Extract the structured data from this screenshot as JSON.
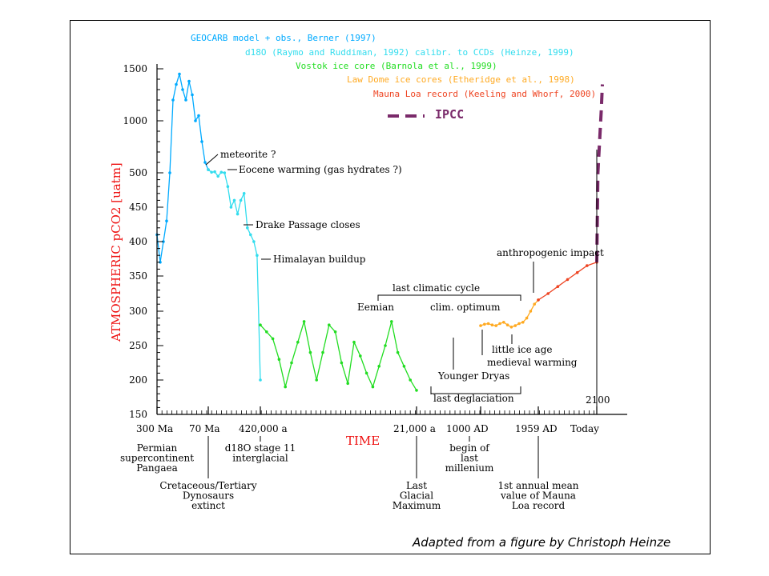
{
  "chart_data": {
    "type": "line",
    "xlabel": "TIME",
    "ylabel": "ATMOSPHERIC  pCO2 [uatm]",
    "y_ticks": [
      150,
      200,
      250,
      300,
      350,
      400,
      450,
      500,
      1000,
      1500
    ],
    "x_ticks": [
      {
        "label": "300 Ma"
      },
      {
        "label": "70 Ma"
      },
      {
        "label": "420,000 a"
      },
      {
        "label": "21,000 a"
      },
      {
        "label": "1000 AD"
      },
      {
        "label": "1959 AD"
      },
      {
        "label": "Today"
      }
    ],
    "axis_end_label": "2100",
    "legend": [
      {
        "name": "GEOCARB model + obs., Berner (1997)",
        "color": "#00aaff"
      },
      {
        "name": "d18O (Raymo and Ruddiman, 1992) calibr. to CCDs (Heinze, 1999)",
        "color": "#33ddee"
      },
      {
        "name": "Vostok ice core (Barnola et al., 1999)",
        "color": "#22dd22"
      },
      {
        "name": "Law Dome ice cores (Etheridge et al., 1998)",
        "color": "#ffaa22"
      },
      {
        "name": "Mauna Loa record (Keeling and Whorf, 2000)",
        "color": "#ee4422"
      },
      {
        "name": "IPCC",
        "color": "#7a2a6a"
      }
    ],
    "series": [
      {
        "name": "GEOCARB model + obs., Berner (1997)",
        "x_range": [
          "300 Ma",
          "70 Ma"
        ],
        "values": [
          410,
          370,
          400,
          430,
          500,
          1200,
          1350,
          1450,
          1300,
          1200,
          1380,
          1250,
          1000,
          1050,
          800,
          600,
          530
        ]
      },
      {
        "name": "d18O (Raymo and Ruddiman, 1992) calibr. to CCDs (Heinze, 1999)",
        "x_range": [
          "70 Ma",
          "420,000 a"
        ],
        "values": [
          530,
          505,
          510,
          495,
          505,
          500,
          480,
          450,
          460,
          440,
          460,
          470,
          420,
          410,
          400,
          380,
          200
        ]
      },
      {
        "name": "Vostok ice core (Barnola et al., 1999)",
        "x_range": [
          "420,000 a",
          "21,000 a"
        ],
        "values": [
          280,
          270,
          260,
          230,
          190,
          225,
          255,
          285,
          240,
          200,
          240,
          280,
          270,
          225,
          195,
          255,
          235,
          210,
          190,
          220,
          250,
          285,
          240,
          220,
          200,
          185
        ]
      },
      {
        "name": "Law Dome ice cores (Etheridge et al., 1998)",
        "x_range": [
          "1000 AD",
          "1959 AD"
        ],
        "values": [
          279,
          281,
          282,
          280,
          279,
          282,
          284,
          280,
          277,
          279,
          282,
          284,
          290,
          300,
          310,
          316
        ]
      },
      {
        "name": "Mauna Loa record (Keeling and Whorf, 2000)",
        "x_range": [
          "1959 AD",
          "Today"
        ],
        "values": [
          316,
          325,
          335,
          345,
          355,
          365,
          370
        ]
      },
      {
        "name": "IPCC",
        "x_range": [
          "Today",
          "2100"
        ],
        "values": [
          370,
          500,
          700,
          900,
          1100,
          1350
        ]
      }
    ],
    "annotations": [
      "meteorite ?",
      "Eocene warming (gas hydrates ?)",
      "Drake Passage closes",
      "Himalayan buildup",
      "last climatic cycle",
      "Eemian",
      "clim. optimum",
      "anthropogenic impact",
      "little ice age",
      "medieval warming",
      "Younger Dryas",
      "last deglaciation"
    ],
    "bottom_labels": [
      {
        "lines": [
          "Permian",
          "supercontinent",
          "Pangaea"
        ]
      },
      {
        "lines": [
          "Cretaceous/Tertiary",
          "Dynosaurs",
          "extinct"
        ]
      },
      {
        "lines": [
          "d18O stage 11",
          "interglacial"
        ]
      },
      {
        "lines": [
          "Last",
          "Glacial",
          "Maximum"
        ]
      },
      {
        "lines": [
          "begin of",
          "last",
          "millenium"
        ]
      },
      {
        "lines": [
          "1st annual mean",
          "value of Mauna",
          "Loa record"
        ]
      }
    ]
  },
  "caption": "Adapted from a figure by Christoph Heinze"
}
